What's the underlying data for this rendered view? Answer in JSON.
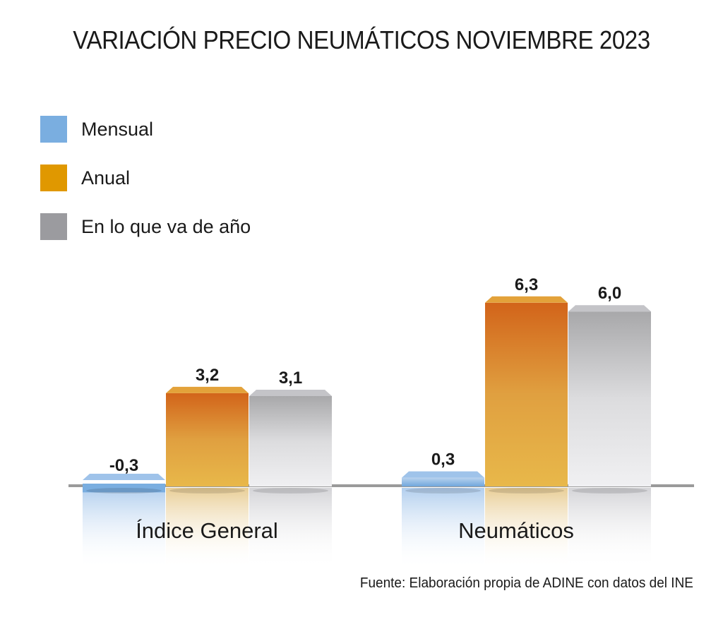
{
  "chart_data": {
    "type": "bar",
    "title": "VARIACIÓN PRECIO NEUMÁTICOS NOVIEMBRE 2023",
    "categories": [
      "Índice General",
      "Neumáticos"
    ],
    "series": [
      {
        "name": "Mensual",
        "color": "#7aaee0",
        "values": [
          -0.3,
          0.3
        ],
        "labels": [
          "-0,3",
          "0,3"
        ]
      },
      {
        "name": "Anual",
        "color": "#e09800",
        "values": [
          3.2,
          6.3
        ],
        "labels": [
          "3,2",
          "6,3"
        ]
      },
      {
        "name": "En lo que va de año",
        "color": "#9b9b9f",
        "values": [
          3.1,
          6.0
        ],
        "labels": [
          "3,1",
          "6,0"
        ]
      }
    ],
    "xlabel": "",
    "ylabel": "",
    "ylim": [
      -0.5,
      7
    ],
    "grid": false,
    "legend_position": "top-left",
    "source": "Fuente: Elaboración propia de ADINE con datos del INE"
  }
}
